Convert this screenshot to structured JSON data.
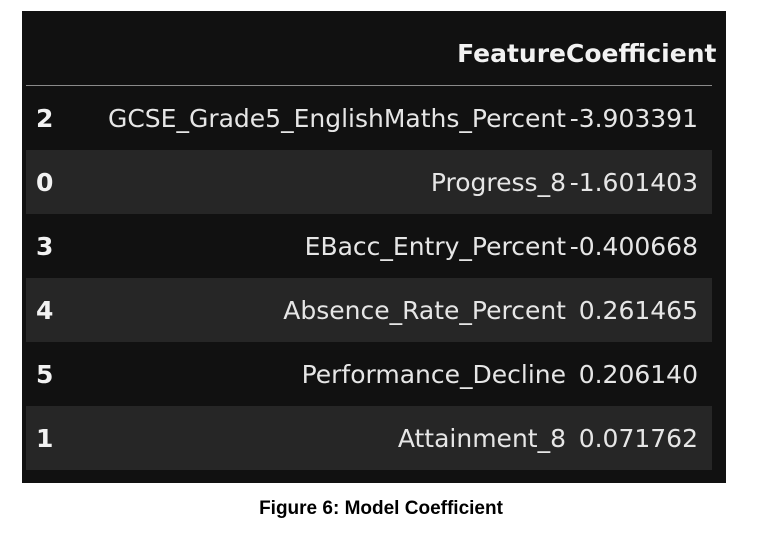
{
  "table": {
    "headers": {
      "index": "",
      "feature": "Feature",
      "coefficient": "Coefficient"
    },
    "rows": [
      {
        "index": "2",
        "feature": "GCSE_Grade5_EnglishMaths_Percent",
        "coefficient": "-3.903391"
      },
      {
        "index": "0",
        "feature": "Progress_8",
        "coefficient": "-1.601403"
      },
      {
        "index": "3",
        "feature": "EBacc_Entry_Percent",
        "coefficient": "-0.400668"
      },
      {
        "index": "4",
        "feature": "Absence_Rate_Percent",
        "coefficient": "0.261465"
      },
      {
        "index": "5",
        "feature": "Performance_Decline",
        "coefficient": "0.206140"
      },
      {
        "index": "1",
        "feature": "Attainment_8",
        "coefficient": "0.071762"
      }
    ]
  },
  "caption": "Figure 6: Model Coefficient",
  "colors": {
    "panel_background": "#111111",
    "striped_row": "#262626",
    "text": "#e6e6e6"
  }
}
